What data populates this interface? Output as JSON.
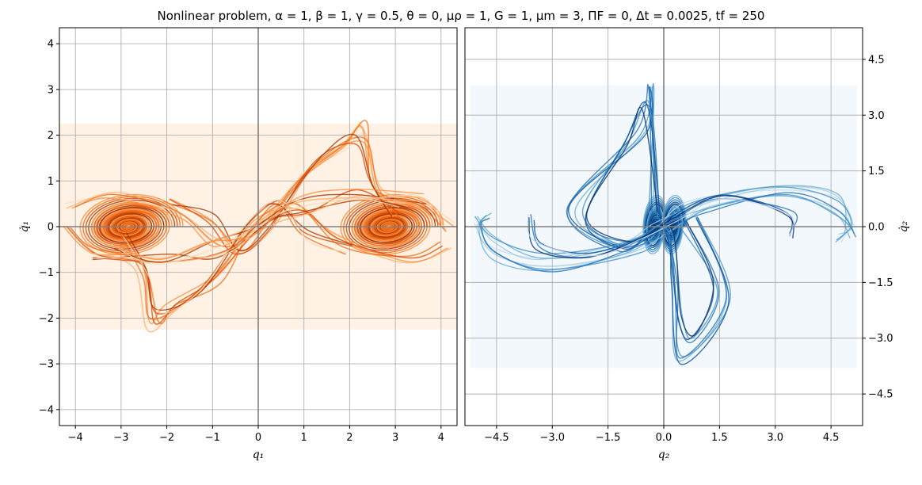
{
  "title": "Nonlinear problem, α = 1, β = 1, γ = 0.5, θ = 0, μρ = 1, G = 1, μm = 3, ΠF = 0, Δt = 0.0025, tf = 250",
  "chart_data": [
    {
      "type": "line",
      "name": "left-phase-portrait",
      "xlabel": "q₁",
      "ylabel": "q̇₁",
      "xlim": [
        -4.35,
        4.35
      ],
      "ylim": [
        -4.35,
        4.35
      ],
      "xticks": [
        -4,
        -3,
        -2,
        -1,
        0,
        1,
        2,
        3,
        4
      ],
      "yticks": [
        -4,
        -3,
        -2,
        -1,
        0,
        1,
        2,
        3,
        4
      ],
      "xticklabels": [
        "−4",
        "−3",
        "−2",
        "−1",
        "0",
        "1",
        "2",
        "3",
        "4"
      ],
      "yticklabels": [
        "−4",
        "−3",
        "−2",
        "−1",
        "0",
        "1",
        "2",
        "3",
        "4"
      ],
      "ylabel_side": "left",
      "grid": true,
      "colormap": "Oranges",
      "colors": [
        "#fdd9b4",
        "#fdae6b",
        "#fd8d3c",
        "#f16913",
        "#d94801",
        "#a63603"
      ],
      "shade": {
        "x": [
          -4.35,
          4.35
        ],
        "y": [
          -2.25,
          2.25
        ],
        "color": "#fff1e3"
      },
      "attractors": [
        [
          -2.85,
          0.0
        ],
        [
          2.85,
          0.0
        ]
      ]
    },
    {
      "type": "line",
      "name": "right-phase-portrait",
      "xlabel": "q₂",
      "ylabel": "q̇₂",
      "xlim": [
        -5.35,
        5.35
      ],
      "ylim": [
        -5.35,
        5.35
      ],
      "xticks": [
        -4.5,
        -3.0,
        -1.5,
        0.0,
        1.5,
        3.0,
        4.5
      ],
      "yticks": [
        -4.5,
        -3.0,
        -1.5,
        0.0,
        1.5,
        3.0,
        4.5
      ],
      "xticklabels": [
        "−4.5",
        "−3.0",
        "−1.5",
        "0.0",
        "1.5",
        "3.0",
        "4.5"
      ],
      "yticklabels": [
        "−4.5",
        "−3.0",
        "−1.5",
        "0.0",
        "1.5",
        "3.0",
        "4.5"
      ],
      "ylabel_side": "right",
      "grid": true,
      "colormap": "Blues",
      "colors": [
        "#c6dbef",
        "#9ecae1",
        "#6baed6",
        "#4292c6",
        "#2171b5",
        "#08519c",
        "#08306b"
      ],
      "shade": {
        "x": [
          -5.2,
          5.2
        ],
        "y": [
          -3.8,
          3.8
        ],
        "color": "#f3f8fd"
      },
      "attractors": [
        [
          -0.25,
          0.0
        ],
        [
          0.25,
          0.0
        ]
      ]
    }
  ]
}
